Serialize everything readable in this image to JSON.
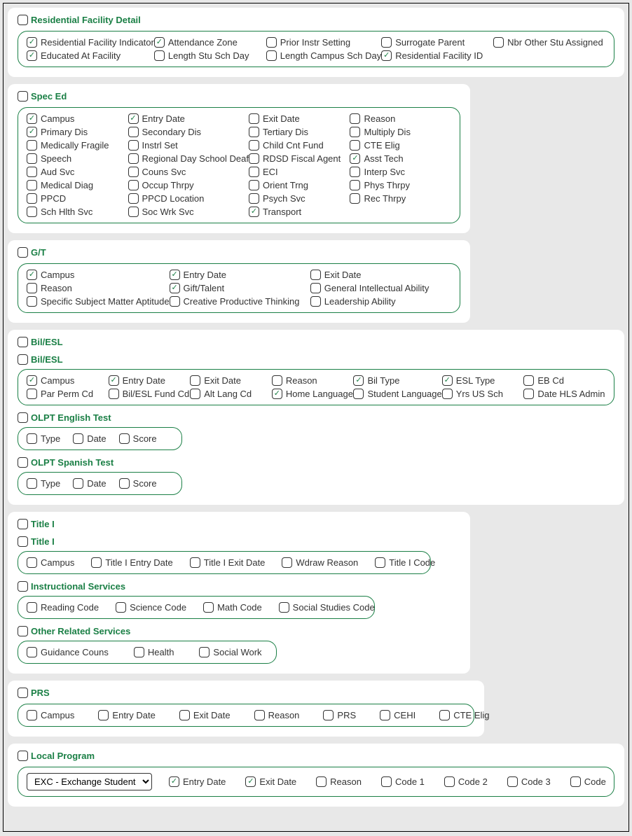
{
  "colors": {
    "accent": "#1a7f45",
    "border": "#333333",
    "bg": "#e8e8e8",
    "panel": "#ffffff"
  },
  "residential": {
    "title": "Residential Facility Detail",
    "items": [
      {
        "label": "Residential Facility Indicator",
        "checked": true
      },
      {
        "label": "Attendance Zone",
        "checked": true
      },
      {
        "label": "Prior Instr Setting",
        "checked": false
      },
      {
        "label": "Surrogate Parent",
        "checked": false
      },
      {
        "label": "Nbr Other Stu Assigned",
        "checked": false
      },
      {
        "label": "Educated At Facility",
        "checked": true
      },
      {
        "label": "Length Stu Sch Day",
        "checked": false
      },
      {
        "label": "Length Campus Sch Day",
        "checked": false
      },
      {
        "label": "Residential Facility ID",
        "checked": true
      }
    ]
  },
  "speced": {
    "title": "Spec Ed",
    "items": [
      {
        "label": "Campus",
        "checked": true
      },
      {
        "label": "Entry Date",
        "checked": true
      },
      {
        "label": "Exit Date",
        "checked": false
      },
      {
        "label": "Reason",
        "checked": false
      },
      {
        "label": "Primary Dis",
        "checked": true
      },
      {
        "label": "Secondary Dis",
        "checked": false
      },
      {
        "label": "Tertiary Dis",
        "checked": false
      },
      {
        "label": "Multiply Dis",
        "checked": false
      },
      {
        "label": "Medically Fragile",
        "checked": false
      },
      {
        "label": "Instrl Set",
        "checked": false
      },
      {
        "label": "Child Cnt Fund",
        "checked": false
      },
      {
        "label": "CTE Elig",
        "checked": false
      },
      {
        "label": "Speech",
        "checked": false
      },
      {
        "label": "Regional Day School Deaf",
        "checked": false
      },
      {
        "label": "RDSD Fiscal Agent",
        "checked": false
      },
      {
        "label": "Asst Tech",
        "checked": true
      },
      {
        "label": "Aud Svc",
        "checked": false
      },
      {
        "label": "Couns Svc",
        "checked": false
      },
      {
        "label": "ECI",
        "checked": false
      },
      {
        "label": "Interp Svc",
        "checked": false
      },
      {
        "label": "Medical Diag",
        "checked": false
      },
      {
        "label": "Occup Thrpy",
        "checked": false
      },
      {
        "label": "Orient Trng",
        "checked": false
      },
      {
        "label": "Phys Thrpy",
        "checked": false
      },
      {
        "label": "PPCD",
        "checked": false
      },
      {
        "label": "PPCD Location",
        "checked": false
      },
      {
        "label": "Psych Svc",
        "checked": false
      },
      {
        "label": "Rec Thrpy",
        "checked": false
      },
      {
        "label": "Sch Hlth Svc",
        "checked": false
      },
      {
        "label": "Soc Wrk Svc",
        "checked": false
      },
      {
        "label": "Transport",
        "checked": true
      }
    ]
  },
  "gt": {
    "title": "G/T",
    "items": [
      {
        "label": "Campus",
        "checked": true
      },
      {
        "label": "Entry Date",
        "checked": true
      },
      {
        "label": "Exit Date",
        "checked": false
      },
      {
        "label": "Reason",
        "checked": false
      },
      {
        "label": "Gift/Talent",
        "checked": true
      },
      {
        "label": "General Intellectual Ability",
        "checked": false
      },
      {
        "label": "Specific Subject Matter Aptitude",
        "checked": false
      },
      {
        "label": "Creative Productive Thinking",
        "checked": false
      },
      {
        "label": "Leadership Ability",
        "checked": false
      }
    ]
  },
  "bilesl": {
    "title": "Bil/ESL",
    "sub1": {
      "title": "Bil/ESL",
      "items": [
        {
          "label": "Campus",
          "checked": true
        },
        {
          "label": "Entry Date",
          "checked": true
        },
        {
          "label": "Exit Date",
          "checked": false
        },
        {
          "label": "Reason",
          "checked": false
        },
        {
          "label": "Bil Type",
          "checked": true
        },
        {
          "label": "ESL Type",
          "checked": true
        },
        {
          "label": "EB Cd",
          "checked": false
        },
        {
          "label": "Par Perm Cd",
          "checked": false
        },
        {
          "label": "Bil/ESL Fund Cd",
          "checked": false
        },
        {
          "label": "Alt Lang Cd",
          "checked": false
        },
        {
          "label": "Home Language",
          "checked": true
        },
        {
          "label": "Student Language",
          "checked": false
        },
        {
          "label": "Yrs US Sch",
          "checked": false
        },
        {
          "label": "Date HLS Admin",
          "checked": false
        }
      ]
    },
    "olpt_en": {
      "title": "OLPT English Test",
      "items": [
        {
          "label": "Type",
          "checked": false
        },
        {
          "label": "Date",
          "checked": false
        },
        {
          "label": "Score",
          "checked": false
        }
      ]
    },
    "olpt_sp": {
      "title": "OLPT Spanish Test",
      "items": [
        {
          "label": "Type",
          "checked": false
        },
        {
          "label": "Date",
          "checked": false
        },
        {
          "label": "Score",
          "checked": false
        }
      ]
    }
  },
  "title1": {
    "title": "Title I",
    "sub1": {
      "title": "Title I",
      "items": [
        {
          "label": "Campus",
          "checked": false
        },
        {
          "label": "Title I Entry Date",
          "checked": false
        },
        {
          "label": "Title I Exit Date",
          "checked": false
        },
        {
          "label": "Wdraw Reason",
          "checked": false
        },
        {
          "label": "Title I Code",
          "checked": false
        }
      ]
    },
    "sub2": {
      "title": "Instructional Services",
      "items": [
        {
          "label": "Reading Code",
          "checked": false
        },
        {
          "label": "Science Code",
          "checked": false
        },
        {
          "label": "Math Code",
          "checked": false
        },
        {
          "label": "Social Studies Code",
          "checked": false
        }
      ]
    },
    "sub3": {
      "title": "Other Related Services",
      "items": [
        {
          "label": "Guidance Couns",
          "checked": false
        },
        {
          "label": "Health",
          "checked": false
        },
        {
          "label": "Social Work",
          "checked": false
        }
      ]
    }
  },
  "prs": {
    "title": "PRS",
    "items": [
      {
        "label": "Campus",
        "checked": false
      },
      {
        "label": "Entry Date",
        "checked": false
      },
      {
        "label": "Exit Date",
        "checked": false
      },
      {
        "label": "Reason",
        "checked": false
      },
      {
        "label": "PRS",
        "checked": false
      },
      {
        "label": "CEHI",
        "checked": false
      },
      {
        "label": "CTE Elig",
        "checked": false
      }
    ]
  },
  "local": {
    "title": "Local Program",
    "dropdown": "EXC - Exchange Student",
    "items": [
      {
        "label": "Entry Date",
        "checked": true
      },
      {
        "label": "Exit Date",
        "checked": true
      },
      {
        "label": "Reason",
        "checked": false
      },
      {
        "label": "Code 1",
        "checked": false
      },
      {
        "label": "Code 2",
        "checked": false
      },
      {
        "label": "Code 3",
        "checked": false
      },
      {
        "label": "Code",
        "checked": false
      }
    ]
  }
}
